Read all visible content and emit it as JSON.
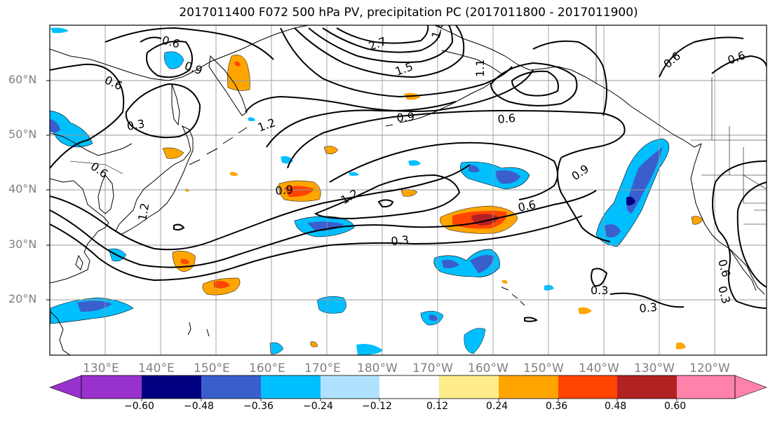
{
  "title": "2017011400 F072 500 hPa PV, precipitation PC (2017011800 - 2017011900)",
  "map": {
    "lat_labels": [
      "60°N",
      "50°N",
      "40°N",
      "30°N",
      "20°N"
    ],
    "lon_labels": [
      "130°E",
      "140°E",
      "150°E",
      "160°E",
      "170°E",
      "180°W",
      "170°W",
      "160°W",
      "150°W",
      "140°W",
      "130°W",
      "120°W"
    ],
    "contour_labels": [
      "0.6",
      "0.9",
      "0.6",
      "0.3",
      "1.2",
      "0.6",
      "2.7",
      "1.5",
      "1.8",
      "1.1",
      "0.6",
      "0.6",
      "0.9",
      "0.6",
      "0.9",
      "1.2",
      "0.9",
      "0.6",
      "0.3",
      "0.3",
      "0.3",
      "0.6",
      "0.3",
      "1.2"
    ]
  },
  "colorbar": {
    "ticks": [
      "−0.60",
      "−0.48",
      "−0.36",
      "−0.24",
      "−0.12",
      "0.12",
      "0.24",
      "0.36",
      "0.48",
      "0.60"
    ],
    "colors": [
      "#9932cc",
      "#000080",
      "#3a5fcd",
      "#00bfff",
      "#b0e2ff",
      "#ffffff",
      "#ffec8b",
      "#ffa500",
      "#ff4500",
      "#b22222",
      "#ff82ab"
    ]
  },
  "legend_colors": {
    "dark_purple": "#9932cc",
    "navy": "#000080",
    "royal_blue": "#3a5fcd",
    "deep_sky_blue": "#00bfff",
    "light_blue": "#b0e2ff",
    "light_yellow": "#ffec8b",
    "orange": "#ffa500",
    "orange_red": "#ff4500",
    "firebrick": "#b22222",
    "pink": "#ff82ab"
  }
}
